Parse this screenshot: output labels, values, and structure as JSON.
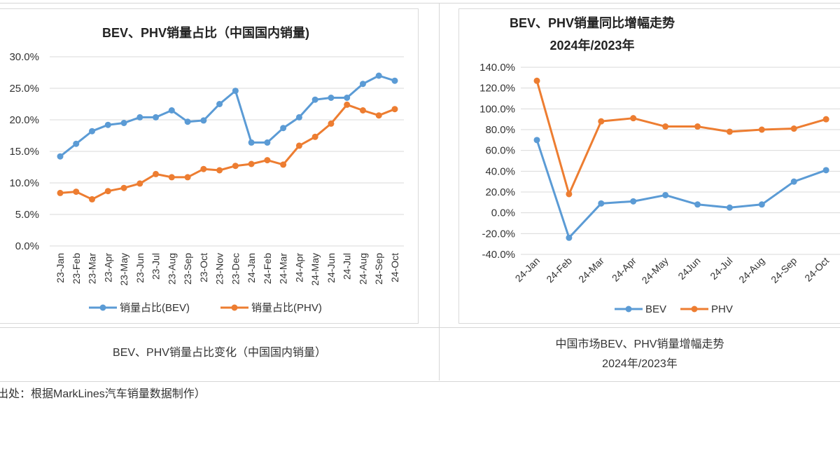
{
  "chart_data": [
    {
      "type": "line",
      "title": "BEV、PHV销量占比（中国国内销量)",
      "xlabel": "",
      "ylabel": "",
      "ylim": [
        0,
        30
      ],
      "y_ticks": [
        "0.0%",
        "5.0%",
        "10.0%",
        "15.0%",
        "20.0%",
        "25.0%",
        "30.0%"
      ],
      "grid": true,
      "legend_position": "bottom",
      "categories": [
        "23-Jan",
        "23-Feb",
        "23-Mar",
        "23-Apr",
        "23-May",
        "23-Jun",
        "23-Jul",
        "23-Aug",
        "23-Sep",
        "23-Oct",
        "23-Nov",
        "23-Dec",
        "24-Jan",
        "24-Feb",
        "24-Mar",
        "24-Apr",
        "24-May",
        "24-Jun",
        "24-Jul",
        "24-Aug",
        "24-Sep",
        "24-Oct"
      ],
      "series": [
        {
          "name": "销量占比(BEV)",
          "color": "#5b9bd5",
          "values": [
            14.2,
            16.2,
            18.2,
            19.2,
            19.5,
            20.4,
            20.4,
            21.5,
            19.7,
            19.9,
            22.5,
            24.6,
            16.4,
            16.4,
            18.7,
            20.4,
            23.2,
            23.5,
            23.5,
            25.7,
            27.0,
            26.2
          ]
        },
        {
          "name": "销量占比(PHV)",
          "color": "#ed7d31",
          "values": [
            8.4,
            8.6,
            7.4,
            8.7,
            9.2,
            9.9,
            11.4,
            10.9,
            10.9,
            12.2,
            12.0,
            12.7,
            13.0,
            13.6,
            12.9,
            15.9,
            17.3,
            19.4,
            22.4,
            21.5,
            20.7,
            21.7
          ]
        }
      ]
    },
    {
      "type": "line",
      "title": "BEV、PHV销量同比增幅走势",
      "subtitle": "2024年/2023年",
      "xlabel": "",
      "ylabel": "",
      "ylim": [
        -40,
        140
      ],
      "y_ticks": [
        "-40.0%",
        "-20.0%",
        "0.0%",
        "20.0%",
        "40.0%",
        "60.0%",
        "80.0%",
        "100.0%",
        "120.0%",
        "140.0%"
      ],
      "grid": true,
      "legend_position": "bottom",
      "categories": [
        "24-Jan",
        "24-Feb",
        "24-Mar",
        "24-Apr",
        "24-May",
        "24Jun",
        "24-Jul",
        "24-Aug",
        "24-Sep",
        "24-Oct"
      ],
      "series": [
        {
          "name": "BEV",
          "color": "#5b9bd5",
          "values": [
            70,
            -24,
            9,
            11,
            17,
            8,
            5,
            8,
            30,
            41
          ]
        },
        {
          "name": "PHV",
          "color": "#ed7d31",
          "values": [
            127,
            18,
            88,
            91,
            83,
            83,
            78,
            80,
            81,
            90
          ]
        }
      ]
    }
  ],
  "captions": {
    "left": "BEV、PHV销量占比变化（中国国内销量）",
    "right_line1": "中国市场BEV、PHV销量增幅走势",
    "right_line2": "2024年/2023年"
  },
  "source": "出处：根据MarkLines汽车销量数据制作）"
}
